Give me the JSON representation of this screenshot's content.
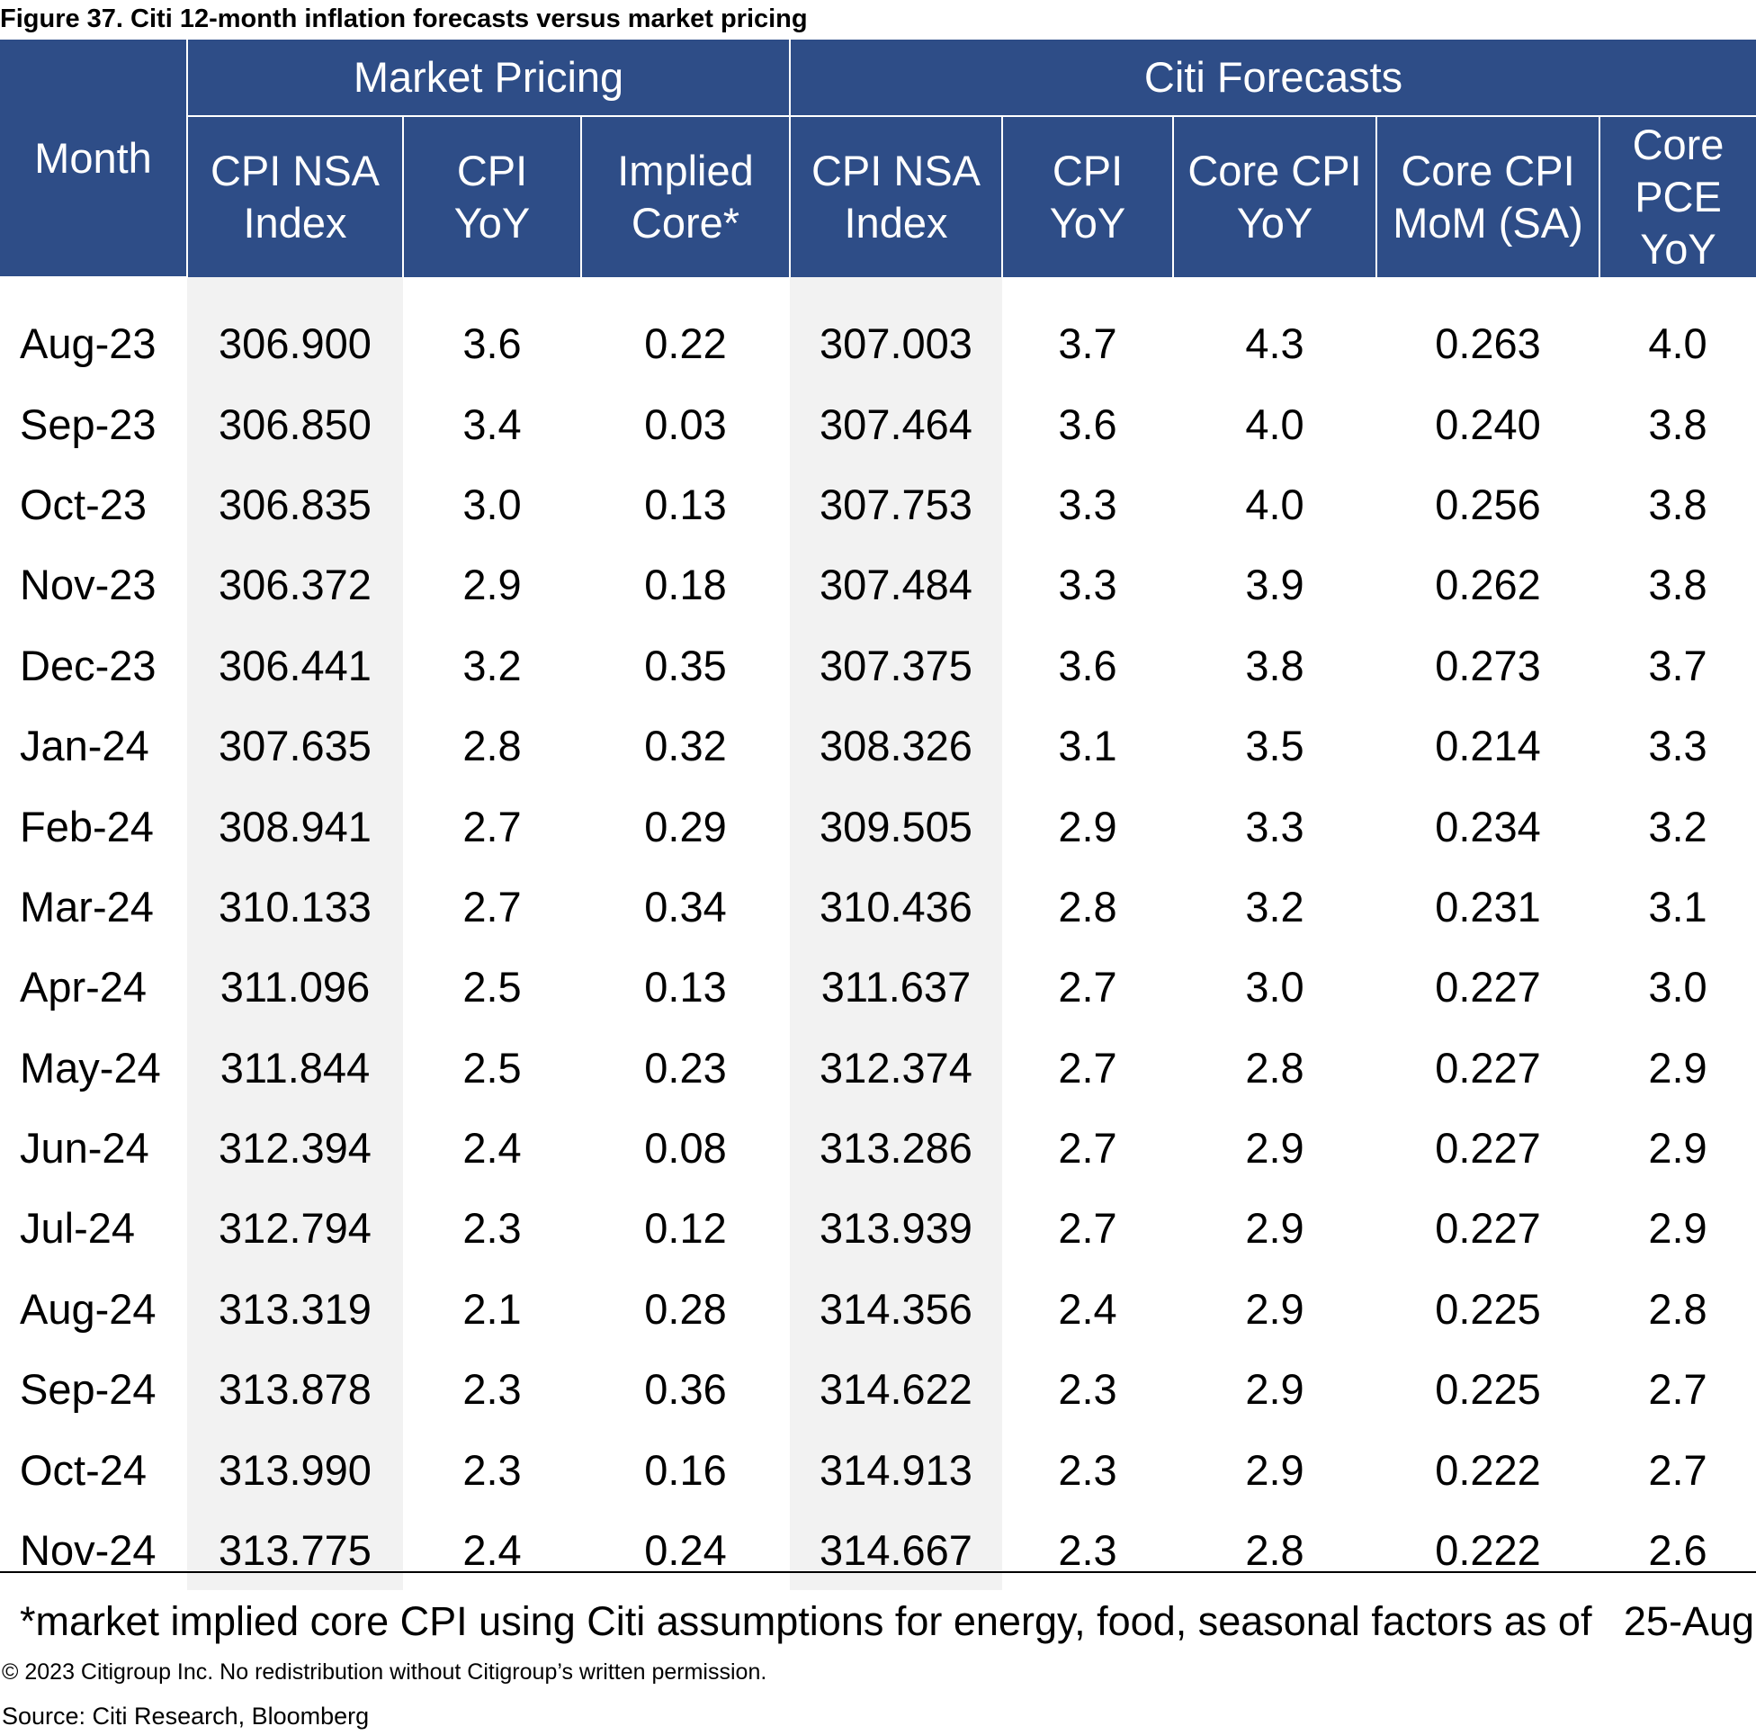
{
  "title": "Figure 37. Citi 12-month inflation forecasts versus market pricing",
  "header": {
    "month": "Month",
    "groups": {
      "market": "Market Pricing",
      "citi": "Citi Forecasts"
    },
    "columns": [
      [
        "CPI NSA",
        "Index"
      ],
      [
        "CPI",
        "YoY"
      ],
      [
        "Implied",
        "Core*"
      ],
      [
        "CPI NSA",
        "Index"
      ],
      [
        "CPI",
        "YoY"
      ],
      [
        "Core CPI",
        "YoY"
      ],
      [
        "Core CPI",
        "MoM (SA)"
      ],
      [
        "Core",
        "PCE",
        "YoY"
      ]
    ]
  },
  "rows": [
    [
      "Aug-23",
      "306.900",
      "3.6",
      "0.22",
      "307.003",
      "3.7",
      "4.3",
      "0.263",
      "4.0"
    ],
    [
      "Sep-23",
      "306.850",
      "3.4",
      "0.03",
      "307.464",
      "3.6",
      "4.0",
      "0.240",
      "3.8"
    ],
    [
      "Oct-23",
      "306.835",
      "3.0",
      "0.13",
      "307.753",
      "3.3",
      "4.0",
      "0.256",
      "3.8"
    ],
    [
      "Nov-23",
      "306.372",
      "2.9",
      "0.18",
      "307.484",
      "3.3",
      "3.9",
      "0.262",
      "3.8"
    ],
    [
      "Dec-23",
      "306.441",
      "3.2",
      "0.35",
      "307.375",
      "3.6",
      "3.8",
      "0.273",
      "3.7"
    ],
    [
      "Jan-24",
      "307.635",
      "2.8",
      "0.32",
      "308.326",
      "3.1",
      "3.5",
      "0.214",
      "3.3"
    ],
    [
      "Feb-24",
      "308.941",
      "2.7",
      "0.29",
      "309.505",
      "2.9",
      "3.3",
      "0.234",
      "3.2"
    ],
    [
      "Mar-24",
      "310.133",
      "2.7",
      "0.34",
      "310.436",
      "2.8",
      "3.2",
      "0.231",
      "3.1"
    ],
    [
      "Apr-24",
      "311.096",
      "2.5",
      "0.13",
      "311.637",
      "2.7",
      "3.0",
      "0.227",
      "3.0"
    ],
    [
      "May-24",
      "311.844",
      "2.5",
      "0.23",
      "312.374",
      "2.7",
      "2.8",
      "0.227",
      "2.9"
    ],
    [
      "Jun-24",
      "312.394",
      "2.4",
      "0.08",
      "313.286",
      "2.7",
      "2.9",
      "0.227",
      "2.9"
    ],
    [
      "Jul-24",
      "312.794",
      "2.3",
      "0.12",
      "313.939",
      "2.7",
      "2.9",
      "0.227",
      "2.9"
    ],
    [
      "Aug-24",
      "313.319",
      "2.1",
      "0.28",
      "314.356",
      "2.4",
      "2.9",
      "0.225",
      "2.8"
    ],
    [
      "Sep-24",
      "313.878",
      "2.3",
      "0.36",
      "314.622",
      "2.3",
      "2.9",
      "0.225",
      "2.7"
    ],
    [
      "Oct-24",
      "313.990",
      "2.3",
      "0.16",
      "314.913",
      "2.3",
      "2.9",
      "0.222",
      "2.7"
    ],
    [
      "Nov-24",
      "313.775",
      "2.4",
      "0.24",
      "314.667",
      "2.3",
      "2.8",
      "0.222",
      "2.6"
    ]
  ],
  "footnote": "*market implied core CPI using Citi assumptions for energy, food, seasonal factors as of",
  "footnote_date": "25-Aug",
  "copyright": "© 2023 Citigroup Inc. No redistribution without Citigroup’s written permission.",
  "source": "Source: Citi Research, Bloomberg",
  "colors": {
    "header_bg": "#2e4d87",
    "header_text": "#ffffff",
    "shade": "#f2f2f2"
  }
}
